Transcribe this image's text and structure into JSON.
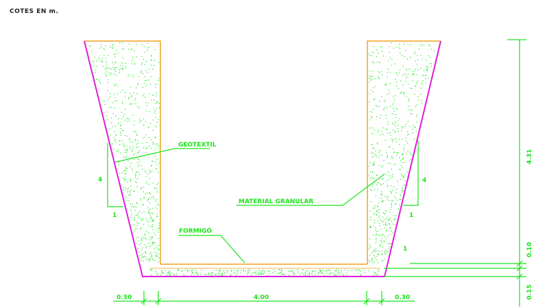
{
  "drawing": {
    "note": "COTES EN m.",
    "labels": {
      "geotextil": "GEOTEXTIL",
      "material_granular": "MATERIAL GRANULAR",
      "formigo": "FORMIGÓ"
    },
    "slope": {
      "left_rise": "4",
      "left_run": "1",
      "right_rise": "4",
      "right_run": "1",
      "extra": "1"
    },
    "dimensions": {
      "bottom_left": "0.30",
      "bottom_center": "4.00",
      "bottom_right": "0.30",
      "right_height": "4.31",
      "right_mid": "0.10",
      "right_bottom": "0.15"
    },
    "colors": {
      "dimension_green": "#19e319",
      "geotextile_magenta": "#e01ad8",
      "concrete_orange": "#f0a020"
    }
  }
}
